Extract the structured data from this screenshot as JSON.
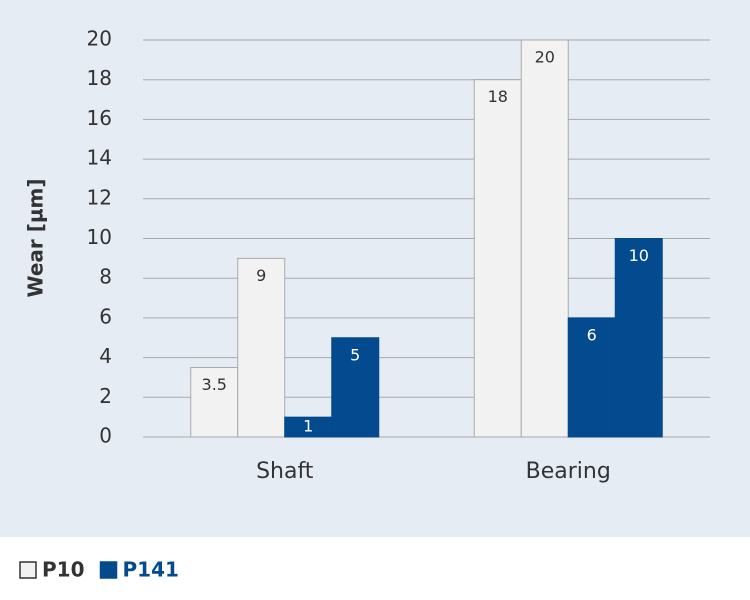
{
  "chart_data": {
    "type": "bar",
    "y_label": "Wear [µm]",
    "categories": [
      "Shaft",
      "Bearing"
    ],
    "series": [
      {
        "name": "P10",
        "color": "#f2f2f2",
        "values": [
          [
            3.5,
            9
          ],
          [
            18,
            20
          ]
        ]
      },
      {
        "name": "P141",
        "color": "#034a8e",
        "values": [
          [
            1,
            5
          ],
          [
            6,
            10
          ]
        ]
      }
    ],
    "ylim": [
      0,
      20
    ],
    "yticks": [
      0,
      2,
      4,
      6,
      8,
      10,
      12,
      14,
      16,
      18,
      20
    ],
    "grid": true,
    "legend": "bottom-left"
  }
}
